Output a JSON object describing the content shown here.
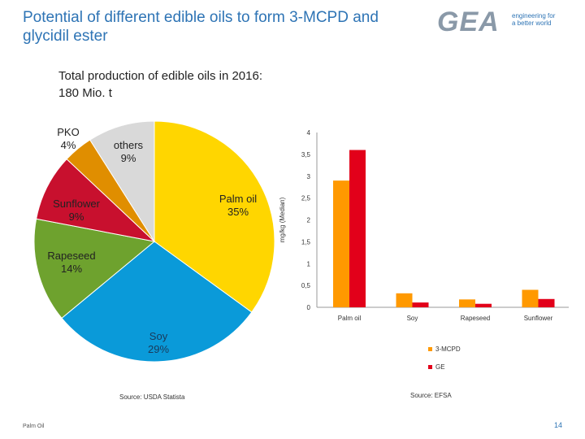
{
  "header": {
    "title_line1": "Potential of different edible oils to form 3-MCPD and",
    "title_line2": "glycidil ester",
    "logo_text": "GEA",
    "logo_tagline_line1": "engineering for",
    "logo_tagline_line2": "a better world"
  },
  "subtitle_line1": "Total production of edible oils in 2016:",
  "subtitle_line2": "180 Mio. t",
  "footer": {
    "left_note": "Palm Oil",
    "page_number": "14"
  },
  "colors": {
    "palm": "#ffd600",
    "soy": "#0a9ad9",
    "rapeseed": "#6ea22e",
    "sunflower": "#c8102e",
    "pko": "#e08e00",
    "others": "#d9d9d9",
    "mcpd": "#ff9900",
    "ge": "#e2001a",
    "title": "#2e74b5"
  },
  "chart_data": [
    {
      "type": "pie",
      "title": "Total production of edible oils in 2016: 180 Mio. t",
      "slices": [
        {
          "label": "Palm oil",
          "pct_label": "35%",
          "value": 35,
          "color_key": "palm"
        },
        {
          "label": "Soy",
          "pct_label": "29%",
          "value": 29,
          "color_key": "soy"
        },
        {
          "label": "Rapeseed",
          "pct_label": "14%",
          "value": 14,
          "color_key": "rapeseed"
        },
        {
          "label": "Sunflower",
          "pct_label": "9%",
          "value": 9,
          "color_key": "sunflower"
        },
        {
          "label": "PKO",
          "pct_label": "4%",
          "value": 4,
          "color_key": "pko"
        },
        {
          "label": "others",
          "pct_label": "9%",
          "value": 9,
          "color_key": "others"
        }
      ],
      "source": "Source: USDA Statista"
    },
    {
      "type": "bar",
      "categories": [
        "Palm oil",
        "Soy",
        "Rapeseed",
        "Sunflower"
      ],
      "series": [
        {
          "name": "3-MCPD",
          "values": [
            2.9,
            0.32,
            0.18,
            0.4
          ],
          "color_key": "mcpd"
        },
        {
          "name": "GE",
          "values": [
            3.6,
            0.11,
            0.08,
            0.19
          ],
          "color_key": "ge"
        }
      ],
      "ylabel": "mg/kg (Median)",
      "ylim": [
        0,
        4
      ],
      "yticks": [
        "0",
        "0,5",
        "1",
        "1,5",
        "2",
        "2,5",
        "3",
        "3,5",
        "4"
      ],
      "legend_position": "bottom",
      "source": "Source: EFSA"
    }
  ]
}
